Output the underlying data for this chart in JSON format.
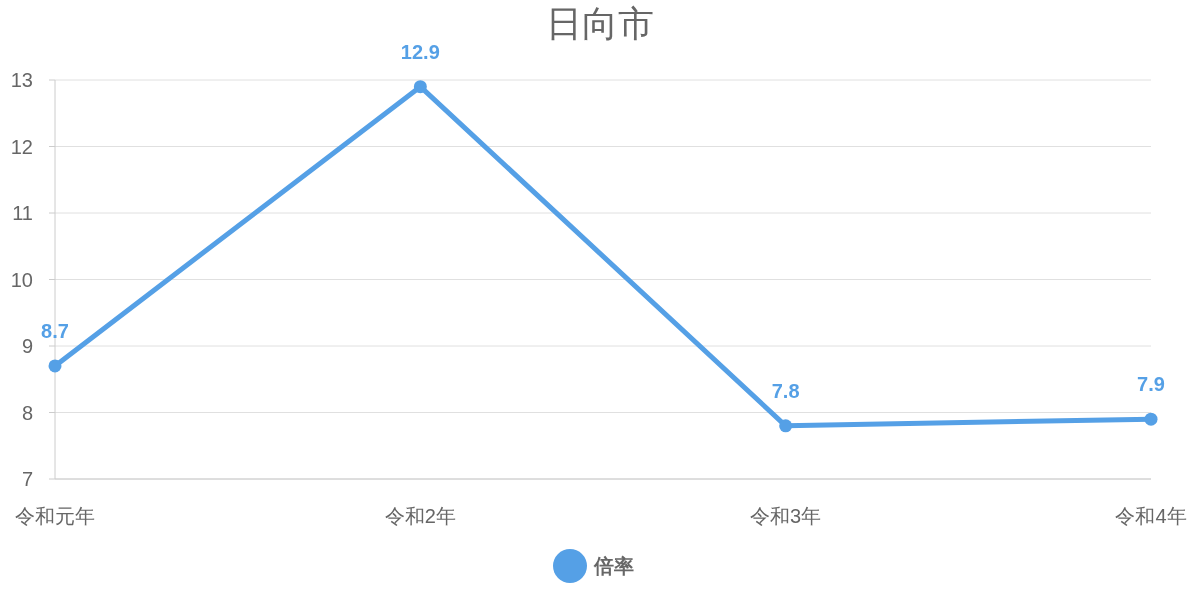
{
  "chart_data": {
    "type": "line",
    "title": "日向市",
    "categories": [
      "令和元年",
      "令和2年",
      "令和3年",
      "令和4年"
    ],
    "series": [
      {
        "name": "倍率",
        "color": "#55a0e6",
        "values": [
          8.7,
          12.9,
          7.8,
          7.9
        ]
      }
    ],
    "ylim": [
      7,
      13
    ],
    "yticks": [
      7,
      8,
      9,
      10,
      11,
      12,
      13
    ],
    "grid": "y",
    "legend": "bottom",
    "marker": "circle",
    "data_labels": true
  }
}
